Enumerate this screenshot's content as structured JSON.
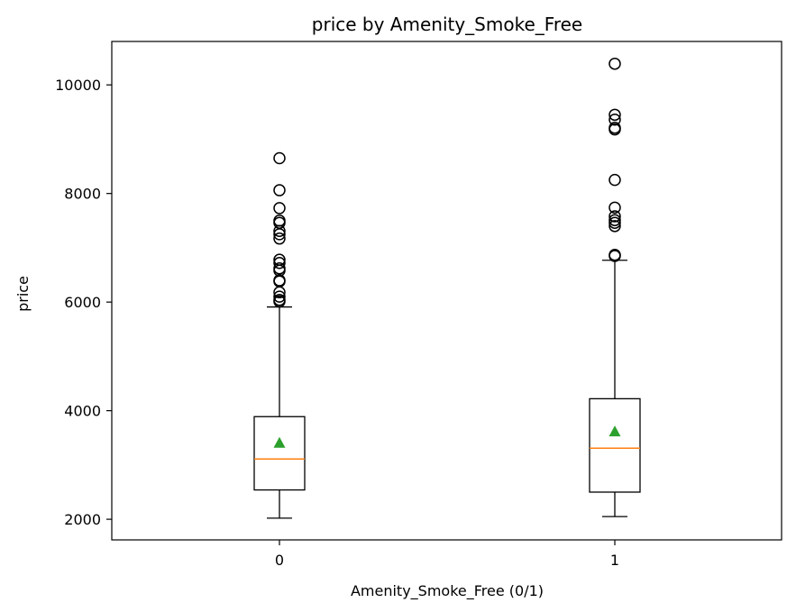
{
  "chart_data": {
    "type": "box",
    "title": "price by Amenity_Smoke_Free",
    "xlabel": "Amenity_Smoke_Free (0/1)",
    "ylabel": "price",
    "categories": [
      "0",
      "1"
    ],
    "yticks": [
      2000,
      4000,
      6000,
      8000,
      10000
    ],
    "ylim": [
      1620,
      10800
    ],
    "grid": false,
    "boxes": [
      {
        "category": "0",
        "whisker_low": 2020,
        "q1": 2540,
        "median": 3110,
        "q3": 3890,
        "whisker_high": 5910,
        "mean": 3400,
        "outliers": [
          6010,
          6040,
          6100,
          6180,
          6380,
          6400,
          6580,
          6620,
          6720,
          6780,
          7170,
          7250,
          7310,
          7460,
          7500,
          7730,
          8060,
          8650
        ]
      },
      {
        "category": "1",
        "whisker_low": 2050,
        "q1": 2500,
        "median": 3310,
        "q3": 4220,
        "whisker_high": 6770,
        "mean": 3610,
        "outliers": [
          6850,
          6870,
          7400,
          7460,
          7510,
          7580,
          7740,
          8250,
          9180,
          9210,
          9360,
          9450,
          10390
        ]
      }
    ],
    "colors": {
      "box": "#000000",
      "median": "#ff7f0e",
      "mean": "#2ca02c",
      "outlier_edge": "#000000"
    }
  }
}
